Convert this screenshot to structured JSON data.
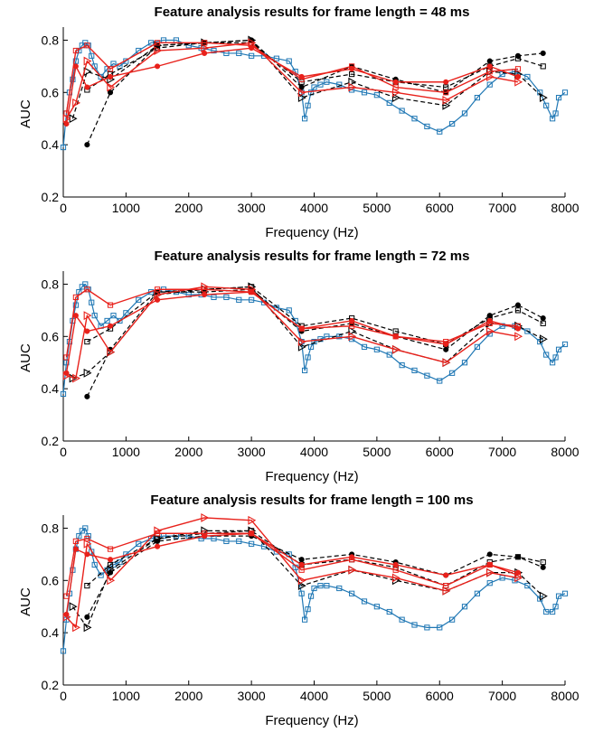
{
  "figure": {
    "background": "#ffffff"
  },
  "colors": {
    "blue": "#1f77b4",
    "red": "#e8211b",
    "black": "#000000"
  },
  "chart_data": [
    {
      "type": "line",
      "title": "Feature analysis results for frame length = 48 ms",
      "xlabel": "Frequency (Hz)",
      "ylabel": "AUC",
      "xlim": [
        0,
        8000
      ],
      "ylim": [
        0.2,
        0.85
      ],
      "xticks": [
        0,
        1000,
        2000,
        3000,
        4000,
        5000,
        6000,
        7000,
        8000
      ],
      "yticks": [
        0.2,
        0.4,
        0.6,
        0.8
      ],
      "grid": false,
      "legend": "none",
      "series": [
        {
          "style": "blue-dense-square",
          "x": [
            0,
            50,
            100,
            150,
            200,
            250,
            300,
            350,
            400,
            450,
            500,
            600,
            700,
            800,
            900,
            1000,
            1200,
            1400,
            1600,
            1800,
            2000,
            2200,
            2400,
            2600,
            2800,
            3000,
            3200,
            3400,
            3600,
            3700,
            3800,
            3850,
            3900,
            3950,
            4000,
            4100,
            4200,
            4400,
            4600,
            4800,
            5000,
            5200,
            5400,
            5600,
            5800,
            6000,
            6200,
            6400,
            6600,
            6800,
            7000,
            7200,
            7400,
            7600,
            7700,
            7800,
            7850,
            7900,
            8000
          ],
          "y": [
            0.39,
            0.52,
            0.6,
            0.65,
            0.72,
            0.76,
            0.78,
            0.79,
            0.78,
            0.74,
            0.7,
            0.66,
            0.69,
            0.71,
            0.7,
            0.72,
            0.76,
            0.79,
            0.8,
            0.8,
            0.78,
            0.77,
            0.76,
            0.75,
            0.75,
            0.74,
            0.74,
            0.73,
            0.72,
            0.68,
            0.6,
            0.5,
            0.55,
            0.6,
            0.62,
            0.63,
            0.64,
            0.63,
            0.61,
            0.6,
            0.59,
            0.56,
            0.53,
            0.5,
            0.47,
            0.45,
            0.48,
            0.52,
            0.58,
            0.63,
            0.67,
            0.68,
            0.66,
            0.6,
            0.55,
            0.5,
            0.52,
            0.58,
            0.6
          ]
        },
        {
          "style": "black-dashed-star",
          "x": [
            380,
            750,
            1500,
            2250,
            3000,
            3800,
            4600,
            5300,
            6100,
            6800,
            7250,
            7650
          ],
          "y": [
            0.4,
            0.6,
            0.78,
            0.79,
            0.8,
            0.62,
            0.7,
            0.65,
            0.6,
            0.72,
            0.74,
            0.75
          ]
        },
        {
          "style": "black-dashed-square",
          "x": [
            380,
            750,
            1500,
            2250,
            3000,
            3800,
            4600,
            5300,
            6100,
            6800,
            7250,
            7650
          ],
          "y": [
            0.61,
            0.67,
            0.77,
            0.79,
            0.79,
            0.64,
            0.67,
            0.64,
            0.62,
            0.7,
            0.73,
            0.7
          ]
        },
        {
          "style": "black-dashed-triangle",
          "x": [
            150,
            380,
            750,
            1500,
            2250,
            3000,
            3800,
            4600,
            5300,
            6100,
            6800,
            7250,
            7650
          ],
          "y": [
            0.5,
            0.68,
            0.65,
            0.78,
            0.79,
            0.8,
            0.58,
            0.64,
            0.58,
            0.55,
            0.68,
            0.67,
            0.58
          ]
        },
        {
          "style": "red-solid-star",
          "x": [
            50,
            200,
            380,
            750,
            1500,
            2250,
            3000,
            3800,
            4600,
            5300,
            6100,
            6800,
            7250
          ],
          "y": [
            0.48,
            0.7,
            0.62,
            0.66,
            0.7,
            0.75,
            0.77,
            0.66,
            0.69,
            0.64,
            0.64,
            0.7,
            0.66
          ]
        },
        {
          "style": "red-solid-square",
          "x": [
            50,
            200,
            380,
            750,
            1500,
            2250,
            3000,
            3800,
            4600,
            5300,
            6100,
            6800,
            7250
          ],
          "y": [
            0.52,
            0.76,
            0.78,
            0.69,
            0.79,
            0.79,
            0.78,
            0.65,
            0.7,
            0.62,
            0.6,
            0.68,
            0.69
          ]
        },
        {
          "style": "red-solid-triangle",
          "x": [
            50,
            200,
            380,
            750,
            1500,
            2250,
            3000,
            3800,
            4600,
            5300,
            6100,
            6800,
            7250
          ],
          "y": [
            0.5,
            0.56,
            0.72,
            0.62,
            0.76,
            0.77,
            0.79,
            0.6,
            0.62,
            0.6,
            0.57,
            0.66,
            0.64
          ]
        }
      ]
    },
    {
      "type": "line",
      "title": "Feature analysis results for frame length = 72 ms",
      "xlabel": "Frequency (Hz)",
      "ylabel": "AUC",
      "xlim": [
        0,
        8000
      ],
      "ylim": [
        0.2,
        0.85
      ],
      "xticks": [
        0,
        1000,
        2000,
        3000,
        4000,
        5000,
        6000,
        7000,
        8000
      ],
      "yticks": [
        0.2,
        0.4,
        0.6,
        0.8
      ],
      "grid": false,
      "legend": "none",
      "series": [
        {
          "style": "blue-dense-square",
          "x": [
            0,
            50,
            100,
            150,
            200,
            250,
            300,
            350,
            400,
            450,
            500,
            600,
            700,
            800,
            900,
            1000,
            1200,
            1400,
            1600,
            1800,
            2000,
            2200,
            2400,
            2600,
            2800,
            3000,
            3200,
            3400,
            3600,
            3700,
            3800,
            3850,
            3900,
            3950,
            4000,
            4100,
            4200,
            4400,
            4600,
            4800,
            5000,
            5200,
            5400,
            5600,
            5800,
            6000,
            6200,
            6400,
            6600,
            6800,
            7000,
            7200,
            7400,
            7600,
            7700,
            7800,
            7850,
            7900,
            8000
          ],
          "y": [
            0.38,
            0.5,
            0.58,
            0.66,
            0.72,
            0.77,
            0.79,
            0.8,
            0.78,
            0.73,
            0.68,
            0.64,
            0.66,
            0.68,
            0.66,
            0.69,
            0.74,
            0.77,
            0.78,
            0.77,
            0.76,
            0.76,
            0.75,
            0.75,
            0.74,
            0.74,
            0.73,
            0.71,
            0.7,
            0.66,
            0.58,
            0.47,
            0.52,
            0.56,
            0.58,
            0.59,
            0.6,
            0.6,
            0.59,
            0.56,
            0.55,
            0.53,
            0.49,
            0.47,
            0.45,
            0.43,
            0.46,
            0.5,
            0.56,
            0.61,
            0.64,
            0.64,
            0.62,
            0.58,
            0.53,
            0.5,
            0.52,
            0.55,
            0.57
          ]
        },
        {
          "style": "black-dashed-star",
          "x": [
            380,
            750,
            1500,
            2250,
            3000,
            3800,
            4600,
            5300,
            6100,
            6800,
            7250,
            7650
          ],
          "y": [
            0.37,
            0.55,
            0.77,
            0.77,
            0.78,
            0.62,
            0.65,
            0.6,
            0.55,
            0.68,
            0.72,
            0.67
          ]
        },
        {
          "style": "black-dashed-square",
          "x": [
            380,
            750,
            1500,
            2250,
            3000,
            3800,
            4600,
            5300,
            6100,
            6800,
            7250,
            7650
          ],
          "y": [
            0.58,
            0.63,
            0.77,
            0.78,
            0.79,
            0.64,
            0.67,
            0.62,
            0.57,
            0.67,
            0.7,
            0.65
          ]
        },
        {
          "style": "black-dashed-triangle",
          "x": [
            150,
            380,
            750,
            1500,
            2250,
            3000,
            3800,
            4600,
            5300,
            6100,
            6800,
            7250,
            7650
          ],
          "y": [
            0.44,
            0.46,
            0.54,
            0.76,
            0.78,
            0.79,
            0.56,
            0.62,
            0.55,
            0.5,
            0.65,
            0.64,
            0.59
          ]
        },
        {
          "style": "red-solid-star",
          "x": [
            50,
            200,
            380,
            750,
            1500,
            2250,
            3000,
            3800,
            4600,
            5300,
            6100,
            6800,
            7250
          ],
          "y": [
            0.46,
            0.68,
            0.62,
            0.64,
            0.74,
            0.76,
            0.77,
            0.63,
            0.66,
            0.6,
            0.57,
            0.66,
            0.63
          ]
        },
        {
          "style": "red-solid-square",
          "x": [
            50,
            200,
            380,
            750,
            1500,
            2250,
            3000,
            3800,
            4600,
            5300,
            6100,
            6800,
            7250
          ],
          "y": [
            0.52,
            0.75,
            0.78,
            0.72,
            0.78,
            0.78,
            0.77,
            0.63,
            0.64,
            0.6,
            0.58,
            0.65,
            0.64
          ]
        },
        {
          "style": "red-solid-triangle",
          "x": [
            50,
            200,
            380,
            750,
            1500,
            2250,
            3000,
            3800,
            4600,
            5300,
            6100,
            6800,
            7250
          ],
          "y": [
            0.45,
            0.44,
            0.68,
            0.54,
            0.76,
            0.79,
            0.78,
            0.58,
            0.6,
            0.55,
            0.5,
            0.62,
            0.6
          ]
        }
      ]
    },
    {
      "type": "line",
      "title": "Feature analysis results for frame length = 100 ms",
      "xlabel": "Frequency (Hz)",
      "ylabel": "AUC",
      "xlim": [
        0,
        8000
      ],
      "ylim": [
        0.2,
        0.85
      ],
      "xticks": [
        0,
        1000,
        2000,
        3000,
        4000,
        5000,
        6000,
        7000,
        8000
      ],
      "yticks": [
        0.2,
        0.4,
        0.6,
        0.8
      ],
      "grid": false,
      "legend": "none",
      "series": [
        {
          "style": "blue-dense-square",
          "x": [
            0,
            50,
            100,
            150,
            200,
            250,
            300,
            350,
            400,
            450,
            500,
            600,
            700,
            800,
            900,
            1000,
            1200,
            1400,
            1600,
            1800,
            2000,
            2200,
            2400,
            2600,
            2800,
            3000,
            3200,
            3400,
            3600,
            3700,
            3800,
            3850,
            3900,
            3950,
            4000,
            4100,
            4200,
            4400,
            4600,
            4800,
            5000,
            5200,
            5400,
            5600,
            5800,
            6000,
            6200,
            6400,
            6600,
            6800,
            7000,
            7200,
            7400,
            7600,
            7700,
            7800,
            7850,
            7900,
            8000
          ],
          "y": [
            0.33,
            0.45,
            0.55,
            0.64,
            0.72,
            0.77,
            0.79,
            0.8,
            0.77,
            0.71,
            0.66,
            0.62,
            0.64,
            0.66,
            0.67,
            0.7,
            0.74,
            0.76,
            0.77,
            0.77,
            0.77,
            0.76,
            0.76,
            0.75,
            0.75,
            0.74,
            0.73,
            0.71,
            0.7,
            0.65,
            0.55,
            0.45,
            0.49,
            0.54,
            0.57,
            0.58,
            0.58,
            0.57,
            0.55,
            0.52,
            0.5,
            0.48,
            0.45,
            0.43,
            0.42,
            0.42,
            0.45,
            0.5,
            0.55,
            0.59,
            0.61,
            0.6,
            0.58,
            0.53,
            0.48,
            0.48,
            0.5,
            0.54,
            0.55
          ]
        },
        {
          "style": "black-dashed-star",
          "x": [
            380,
            750,
            1500,
            2250,
            3000,
            3800,
            4600,
            5300,
            6100,
            6800,
            7250,
            7650
          ],
          "y": [
            0.46,
            0.63,
            0.75,
            0.77,
            0.77,
            0.68,
            0.7,
            0.67,
            0.62,
            0.7,
            0.69,
            0.65
          ]
        },
        {
          "style": "black-dashed-square",
          "x": [
            380,
            750,
            1500,
            2250,
            3000,
            3800,
            4600,
            5300,
            6100,
            6800,
            7250,
            7650
          ],
          "y": [
            0.58,
            0.66,
            0.76,
            0.78,
            0.79,
            0.66,
            0.68,
            0.65,
            0.58,
            0.67,
            0.69,
            0.67
          ]
        },
        {
          "style": "black-dashed-triangle",
          "x": [
            150,
            380,
            750,
            1500,
            2250,
            3000,
            3800,
            4600,
            5300,
            6100,
            6800,
            7250,
            7650
          ],
          "y": [
            0.5,
            0.42,
            0.64,
            0.76,
            0.79,
            0.79,
            0.58,
            0.64,
            0.6,
            0.56,
            0.63,
            0.63,
            0.54
          ]
        },
        {
          "style": "red-solid-star",
          "x": [
            50,
            200,
            380,
            750,
            1500,
            2250,
            3000,
            3800,
            4600,
            5300,
            6100,
            6800,
            7250
          ],
          "y": [
            0.47,
            0.72,
            0.7,
            0.68,
            0.73,
            0.77,
            0.78,
            0.66,
            0.69,
            0.66,
            0.62,
            0.66,
            0.63
          ]
        },
        {
          "style": "red-solid-square",
          "x": [
            50,
            200,
            380,
            750,
            1500,
            2250,
            3000,
            3800,
            4600,
            5300,
            6100,
            6800,
            7250
          ],
          "y": [
            0.54,
            0.75,
            0.76,
            0.72,
            0.78,
            0.78,
            0.78,
            0.64,
            0.68,
            0.64,
            0.58,
            0.66,
            0.62
          ]
        },
        {
          "style": "red-solid-triangle",
          "x": [
            50,
            200,
            380,
            750,
            1500,
            2250,
            3000,
            3800,
            4600,
            5300,
            6100,
            6800,
            7250
          ],
          "y": [
            0.46,
            0.42,
            0.74,
            0.6,
            0.79,
            0.84,
            0.83,
            0.6,
            0.64,
            0.61,
            0.56,
            0.63,
            0.61
          ]
        }
      ]
    }
  ]
}
